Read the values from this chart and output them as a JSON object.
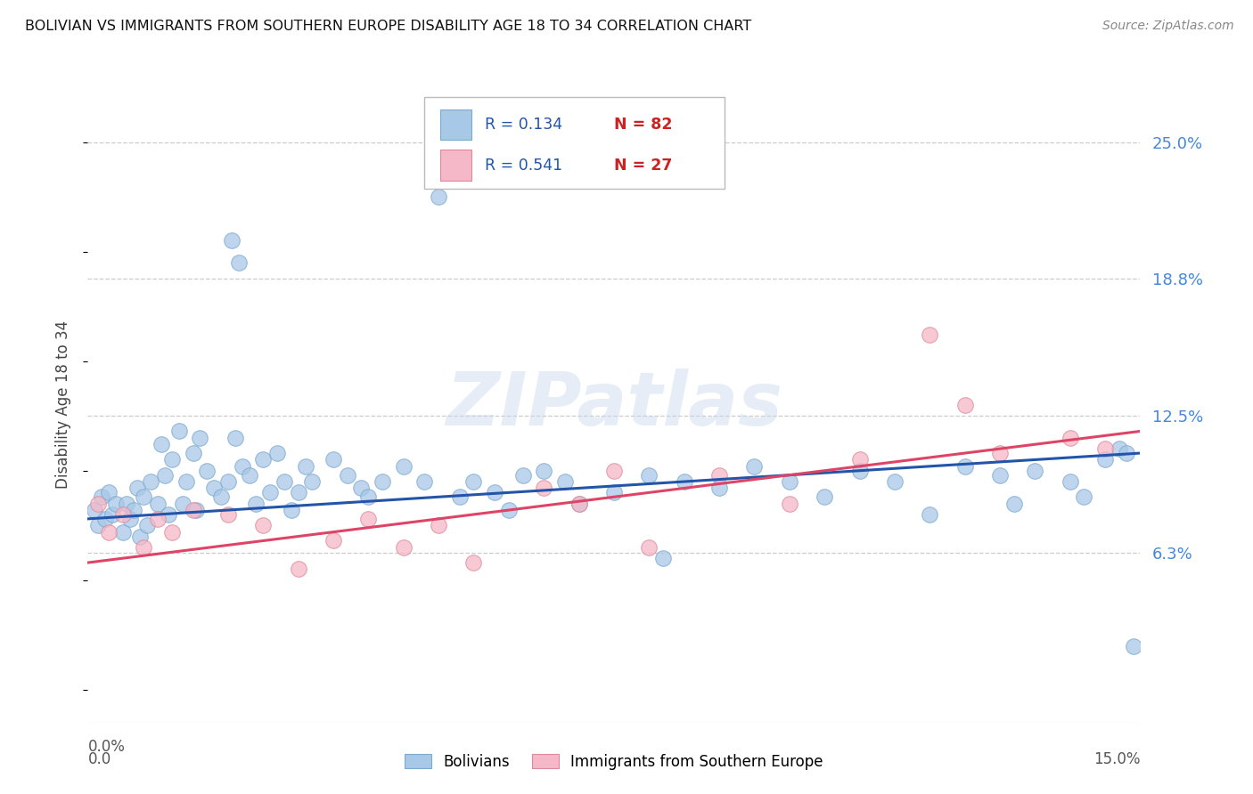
{
  "title": "BOLIVIAN VS IMMIGRANTS FROM SOUTHERN EUROPE DISABILITY AGE 18 TO 34 CORRELATION CHART",
  "source": "Source: ZipAtlas.com",
  "ylabel": "Disability Age 18 to 34",
  "ytick_values": [
    6.25,
    12.5,
    18.75,
    25.0
  ],
  "ytick_labels": [
    "6.3%",
    "12.5%",
    "18.8%",
    "25.0%"
  ],
  "xlim": [
    0.0,
    15.0
  ],
  "ylim": [
    -1.5,
    27.5
  ],
  "blue_color": "#a8c8e8",
  "blue_edge_color": "#7aaace",
  "pink_color": "#f4b8c8",
  "pink_edge_color": "#e08898",
  "blue_line_color": "#2255aa",
  "pink_line_color": "#dd4466",
  "legend_R1": "0.134",
  "legend_N1": "82",
  "legend_R2": "0.541",
  "legend_N2": "27",
  "label1": "Bolivians",
  "label2": "Immigrants from Southern Europe",
  "blue_trend_x": [
    0.0,
    15.0
  ],
  "blue_trend_y": [
    7.8,
    10.8
  ],
  "pink_trend_x": [
    0.0,
    15.0
  ],
  "pink_trend_y": [
    5.8,
    11.8
  ],
  "blue_scatter_x": [
    0.1,
    0.15,
    0.2,
    0.25,
    0.3,
    0.35,
    0.4,
    0.5,
    0.55,
    0.6,
    0.65,
    0.7,
    0.75,
    0.8,
    0.85,
    0.9,
    1.0,
    1.05,
    1.1,
    1.15,
    1.2,
    1.3,
    1.35,
    1.4,
    1.5,
    1.55,
    1.6,
    1.7,
    1.8,
    1.9,
    2.0,
    2.1,
    2.2,
    2.3,
    2.4,
    2.5,
    2.6,
    2.7,
    2.8,
    2.9,
    3.0,
    3.1,
    3.2,
    3.5,
    3.7,
    3.9,
    4.0,
    4.2,
    4.5,
    4.8,
    5.0,
    5.3,
    5.5,
    5.8,
    6.0,
    6.2,
    6.5,
    6.8,
    7.0,
    7.5,
    8.0,
    8.2,
    8.5,
    9.0,
    9.5,
    10.0,
    10.5,
    11.0,
    11.5,
    12.0,
    12.5,
    13.0,
    13.2,
    13.5,
    14.0,
    14.2,
    14.5,
    14.7,
    14.8,
    14.9,
    2.05,
    2.15
  ],
  "blue_scatter_y": [
    8.2,
    7.5,
    8.8,
    7.8,
    9.0,
    8.0,
    8.5,
    7.2,
    8.5,
    7.8,
    8.2,
    9.2,
    7.0,
    8.8,
    7.5,
    9.5,
    8.5,
    11.2,
    9.8,
    8.0,
    10.5,
    11.8,
    8.5,
    9.5,
    10.8,
    8.2,
    11.5,
    10.0,
    9.2,
    8.8,
    9.5,
    11.5,
    10.2,
    9.8,
    8.5,
    10.5,
    9.0,
    10.8,
    9.5,
    8.2,
    9.0,
    10.2,
    9.5,
    10.5,
    9.8,
    9.2,
    8.8,
    9.5,
    10.2,
    9.5,
    22.5,
    8.8,
    9.5,
    9.0,
    8.2,
    9.8,
    10.0,
    9.5,
    8.5,
    9.0,
    9.8,
    6.0,
    9.5,
    9.2,
    10.2,
    9.5,
    8.8,
    10.0,
    9.5,
    8.0,
    10.2,
    9.8,
    8.5,
    10.0,
    9.5,
    8.8,
    10.5,
    11.0,
    10.8,
    2.0,
    20.5,
    19.5
  ],
  "pink_scatter_x": [
    0.15,
    0.3,
    0.5,
    0.8,
    1.0,
    1.2,
    1.5,
    2.0,
    2.5,
    3.0,
    3.5,
    4.0,
    4.5,
    5.0,
    5.5,
    6.5,
    7.0,
    7.5,
    8.0,
    9.0,
    10.0,
    11.0,
    12.0,
    12.5,
    13.0,
    14.0,
    14.5
  ],
  "pink_scatter_y": [
    8.5,
    7.2,
    8.0,
    6.5,
    7.8,
    7.2,
    8.2,
    8.0,
    7.5,
    5.5,
    6.8,
    7.8,
    6.5,
    7.5,
    5.8,
    9.2,
    8.5,
    10.0,
    6.5,
    9.8,
    8.5,
    10.5,
    16.2,
    13.0,
    10.8,
    11.5,
    11.0
  ]
}
